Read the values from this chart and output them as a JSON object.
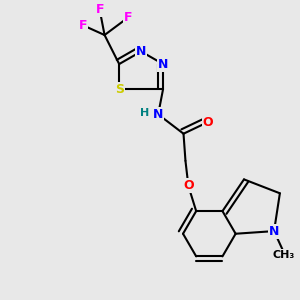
{
  "background_color": "#e8e8e8",
  "atom_colors": {
    "C": "#000000",
    "N": "#0000ff",
    "O": "#ff0000",
    "S": "#cccc00",
    "F": "#ff00ff",
    "H": "#008080"
  },
  "bond_color": "#000000",
  "bond_width": 1.5,
  "font_size_atom": 9,
  "font_size_small": 8
}
